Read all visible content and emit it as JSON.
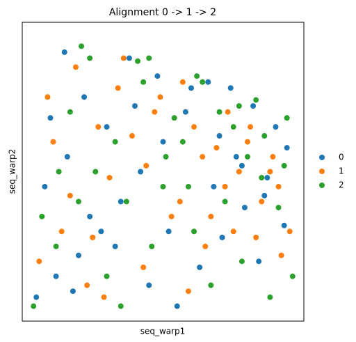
{
  "chart_data": {
    "type": "scatter",
    "title": "Alignment 0 -> 1 -> 2",
    "x_label": "seq_warp1",
    "y_label": "seq_warp2",
    "xlim": [
      0,
      100
    ],
    "ylim": [
      0,
      100
    ],
    "legend": "right",
    "series": [
      {
        "name": "0",
        "color": "#1f77b4",
        "x": [
          5,
          12,
          20,
          28,
          35,
          42,
          50,
          58,
          66,
          74,
          82,
          90,
          8,
          16,
          24,
          33,
          45,
          55,
          63,
          71,
          79,
          87,
          94,
          10,
          22,
          38,
          48,
          60,
          70,
          78,
          86,
          93,
          15,
          30,
          52,
          68,
          76,
          84,
          18,
          40
        ],
        "values": [
          8,
          15,
          22,
          30,
          40,
          50,
          60,
          70,
          80,
          78,
          72,
          65,
          45,
          55,
          35,
          25,
          12,
          5,
          18,
          28,
          38,
          48,
          58,
          68,
          75,
          88,
          82,
          78,
          62,
          52,
          42,
          32,
          90,
          65,
          30,
          45,
          55,
          20,
          10,
          72
        ]
      },
      {
        "name": "1",
        "color": "#ff7f0e",
        "x": [
          6,
          14,
          23,
          31,
          39,
          47,
          56,
          64,
          72,
          80,
          88,
          95,
          9,
          19,
          27,
          36,
          44,
          53,
          61,
          69,
          77,
          85,
          92,
          11,
          25,
          34,
          49,
          57,
          65,
          73,
          81,
          89,
          17,
          29,
          43,
          59,
          75,
          83,
          91,
          67
        ],
        "values": [
          20,
          30,
          12,
          48,
          62,
          70,
          40,
          55,
          45,
          60,
          50,
          30,
          75,
          85,
          65,
          88,
          52,
          35,
          65,
          58,
          50,
          40,
          22,
          60,
          28,
          78,
          75,
          80,
          25,
          70,
          65,
          55,
          42,
          8,
          18,
          10,
          30,
          28,
          45,
          35
        ]
      },
      {
        "name": "2",
        "color": "#2ca02c",
        "x": [
          4,
          13,
          21,
          30,
          37,
          46,
          54,
          62,
          70,
          78,
          86,
          94,
          7,
          17,
          26,
          35,
          43,
          51,
          59,
          67,
          75,
          83,
          91,
          96,
          12,
          24,
          41,
          57,
          64,
          72,
          80,
          88,
          20,
          33,
          50,
          61,
          77,
          85,
          93,
          45
        ],
        "values": [
          5,
          50,
          92,
          15,
          40,
          25,
          68,
          82,
          70,
          20,
          62,
          68,
          35,
          70,
          50,
          5,
          80,
          55,
          45,
          12,
          65,
          74,
          38,
          15,
          25,
          88,
          87,
          60,
          80,
          40,
          55,
          8,
          40,
          60,
          45,
          30,
          72,
          48,
          52,
          88
        ]
      }
    ]
  }
}
